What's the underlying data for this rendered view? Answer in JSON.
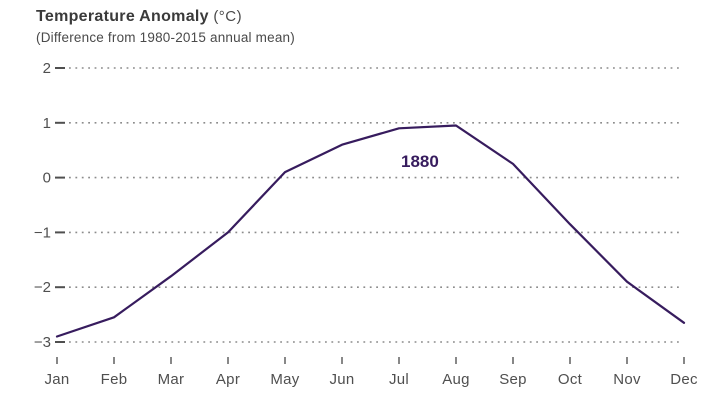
{
  "header": {
    "title": "Temperature Anomaly",
    "title_suffix": "(°C)",
    "subtitle": "(Difference from 1980-2015 annual mean)"
  },
  "chart_data": {
    "type": "line",
    "title": "Temperature Anomaly (°C)",
    "subtitle": "(Difference from 1980-2015 annual mean)",
    "xlabel": "",
    "ylabel": "",
    "categories": [
      "Jan",
      "Feb",
      "Mar",
      "Apr",
      "May",
      "Jun",
      "Jul",
      "Aug",
      "Sep",
      "Oct",
      "Nov",
      "Dec"
    ],
    "series": [
      {
        "name": "1880",
        "values": [
          -2.9,
          -2.55,
          -1.8,
          -1.0,
          0.1,
          0.6,
          0.9,
          0.95,
          0.25,
          -0.85,
          -1.9,
          -2.65
        ],
        "color": "#371c5e",
        "label_text": "1880"
      }
    ],
    "ylim": [
      -3,
      2
    ],
    "yticks": [
      2,
      1,
      0,
      -1,
      -2,
      -3
    ],
    "grid": "horizontal-dotted",
    "legend_position": "inline-annotation"
  },
  "colors": {
    "line": "#371c5e",
    "annotation": "#371c5e",
    "title_text": "#3a3a3a",
    "axis_text": "#4f4f4f",
    "grid_dots": "#8c8c8c",
    "tick_marks": "#7a7a7a",
    "background": "#ffffff"
  }
}
